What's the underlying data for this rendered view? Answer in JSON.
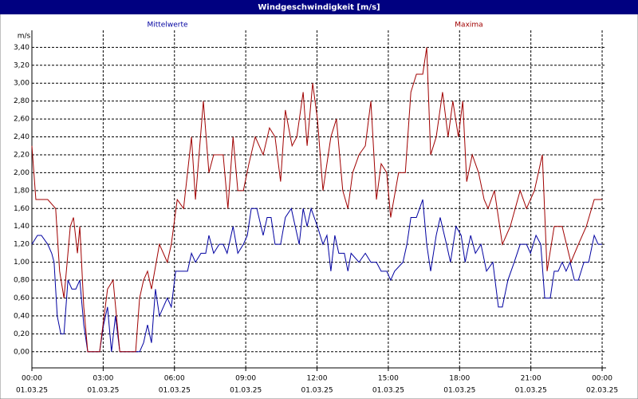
{
  "chart_data": {
    "type": "line",
    "title": "Windgeschwindigkeit [m/s]",
    "y_unit": "m/s",
    "xlim": [
      0,
      1450
    ],
    "ylim": [
      -0.18,
      3.59
    ],
    "grid": true,
    "xticks": [
      {
        "value": 0,
        "label": [
          "00:00",
          "01.03.25"
        ]
      },
      {
        "value": 180,
        "label": [
          "03:00",
          "01.03.25"
        ]
      },
      {
        "value": 360,
        "label": [
          "06:00",
          "01.03.25"
        ]
      },
      {
        "value": 540,
        "label": [
          "09:00",
          "01.03.25"
        ]
      },
      {
        "value": 720,
        "label": [
          "12:00",
          "01.03.25"
        ]
      },
      {
        "value": 900,
        "label": [
          "15:00",
          "01.03.25"
        ]
      },
      {
        "value": 1080,
        "label": [
          "18:00",
          "01.03.25"
        ]
      },
      {
        "value": 1260,
        "label": [
          "21:00",
          "01.03.25"
        ]
      },
      {
        "value": 1440,
        "label": [
          "00:00",
          "02.03.25"
        ]
      }
    ],
    "yticks": [
      {
        "value": 0,
        "label": "0,00"
      },
      {
        "value": 0.2,
        "label": "0,20"
      },
      {
        "value": 0.4,
        "label": "0,40"
      },
      {
        "value": 0.6,
        "label": "0,60"
      },
      {
        "value": 0.8,
        "label": "0,80"
      },
      {
        "value": 1.0,
        "label": "1,00"
      },
      {
        "value": 1.2,
        "label": "1,20"
      },
      {
        "value": 1.4,
        "label": "1,40"
      },
      {
        "value": 1.6,
        "label": "1,60"
      },
      {
        "value": 1.8,
        "label": "1,80"
      },
      {
        "value": 2.0,
        "label": "2,00"
      },
      {
        "value": 2.2,
        "label": "2,20"
      },
      {
        "value": 2.4,
        "label": "2,40"
      },
      {
        "value": 2.6,
        "label": "2,60"
      },
      {
        "value": 2.8,
        "label": "2,80"
      },
      {
        "value": 3.0,
        "label": "3,00"
      },
      {
        "value": 3.2,
        "label": "3,20"
      },
      {
        "value": 3.4,
        "label": "3,40"
      }
    ],
    "series": [
      {
        "name": "Mittelwerte",
        "color": "#0000a0",
        "x": [
          0,
          14,
          24,
          40,
          50,
          56,
          64,
          73,
          81,
          91,
          101,
          111,
          121,
          131,
          141,
          171,
          181,
          191,
          201,
          211,
          222,
          272,
          282,
          292,
          302,
          312,
          322,
          332,
          342,
          352,
          363,
          393,
          403,
          413,
          427,
          439,
          447,
          459,
          473,
          483,
          493,
          508,
          520,
          534,
          544,
          554,
          568,
          584,
          594,
          604,
          614,
          628,
          640,
          655,
          665,
          675,
          685,
          695,
          705,
          721,
          735,
          745,
          755,
          765,
          775,
          789,
          798,
          806,
          826,
          842,
          856,
          870,
          882,
          896,
          906,
          916,
          937,
          947,
          957,
          971,
          987,
          997,
          1007,
          1021,
          1031,
          1047,
          1057,
          1071,
          1084,
          1094,
          1108,
          1120,
          1134,
          1148,
          1164,
          1178,
          1188,
          1202,
          1218,
          1233,
          1249,
          1259,
          1273,
          1285,
          1295,
          1309,
          1319,
          1329,
          1339,
          1349,
          1359,
          1370,
          1380,
          1394,
          1406,
          1420,
          1430,
          1440
        ],
        "values": [
          1.2,
          1.3,
          1.3,
          1.2,
          1.1,
          1.0,
          0.4,
          0.2,
          0.2,
          0.8,
          0.7,
          0.7,
          0.8,
          0.3,
          0.0,
          0.0,
          0.3,
          0.5,
          0.0,
          0.4,
          0.0,
          0.0,
          0.1,
          0.3,
          0.1,
          0.7,
          0.4,
          0.5,
          0.6,
          0.5,
          0.9,
          0.9,
          1.1,
          1.0,
          1.1,
          1.1,
          1.3,
          1.1,
          1.2,
          1.2,
          1.1,
          1.4,
          1.1,
          1.2,
          1.3,
          1.6,
          1.6,
          1.3,
          1.5,
          1.5,
          1.2,
          1.2,
          1.5,
          1.6,
          1.4,
          1.2,
          1.6,
          1.4,
          1.6,
          1.4,
          1.2,
          1.3,
          0.9,
          1.3,
          1.1,
          1.1,
          0.9,
          1.1,
          1.0,
          1.1,
          1.0,
          1.0,
          0.9,
          0.9,
          0.8,
          0.9,
          1.0,
          1.2,
          1.5,
          1.5,
          1.7,
          1.2,
          0.9,
          1.3,
          1.5,
          1.2,
          1.0,
          1.4,
          1.3,
          1.0,
          1.3,
          1.1,
          1.2,
          0.9,
          1.0,
          0.5,
          0.5,
          0.8,
          1.0,
          1.2,
          1.2,
          1.1,
          1.3,
          1.2,
          0.6,
          0.6,
          0.9,
          0.9,
          1.0,
          0.9,
          1.0,
          0.8,
          0.8,
          1.0,
          1.0,
          1.3,
          1.2,
          1.2
        ]
      },
      {
        "name": "Maxima",
        "color": "#a00000",
        "x": [
          0,
          10,
          40,
          60,
          70,
          81,
          97,
          105,
          115,
          121,
          131,
          141,
          171,
          191,
          205,
          222,
          262,
          272,
          282,
          292,
          302,
          322,
          342,
          352,
          367,
          383,
          403,
          413,
          433,
          447,
          459,
          483,
          495,
          508,
          520,
          534,
          548,
          564,
          584,
          600,
          614,
          628,
          640,
          657,
          669,
          685,
          695,
          709,
          721,
          735,
          755,
          769,
          785,
          798,
          810,
          826,
          842,
          856,
          870,
          882,
          896,
          906,
          926,
          943,
          957,
          971,
          987,
          997,
          1007,
          1021,
          1037,
          1051,
          1063,
          1077,
          1088,
          1098,
          1112,
          1128,
          1142,
          1152,
          1168,
          1188,
          1208,
          1233,
          1249,
          1269,
          1289,
          1301,
          1319,
          1339,
          1361,
          1380,
          1400,
          1420,
          1440
        ],
        "values": [
          2.3,
          1.7,
          1.7,
          1.6,
          0.9,
          0.6,
          1.4,
          1.5,
          1.1,
          1.4,
          0.5,
          0.0,
          0.0,
          0.7,
          0.8,
          0.0,
          0.0,
          0.6,
          0.8,
          0.9,
          0.7,
          1.2,
          1.0,
          1.2,
          1.7,
          1.6,
          2.4,
          1.7,
          2.8,
          2.0,
          2.2,
          2.2,
          1.6,
          2.4,
          1.8,
          1.8,
          2.1,
          2.4,
          2.2,
          2.5,
          2.4,
          1.9,
          2.7,
          2.3,
          2.4,
          2.9,
          2.3,
          3.0,
          2.6,
          1.8,
          2.4,
          2.6,
          1.8,
          1.6,
          2.0,
          2.2,
          2.3,
          2.8,
          1.7,
          2.1,
          2.0,
          1.5,
          2.0,
          2.0,
          2.9,
          3.1,
          3.1,
          3.4,
          2.2,
          2.4,
          2.9,
          2.4,
          2.8,
          2.4,
          2.8,
          1.9,
          2.2,
          2.0,
          1.7,
          1.6,
          1.8,
          1.2,
          1.4,
          1.8,
          1.6,
          1.8,
          2.2,
          0.9,
          1.4,
          1.4,
          1.0,
          1.2,
          1.4,
          1.7,
          1.7
        ]
      }
    ]
  }
}
